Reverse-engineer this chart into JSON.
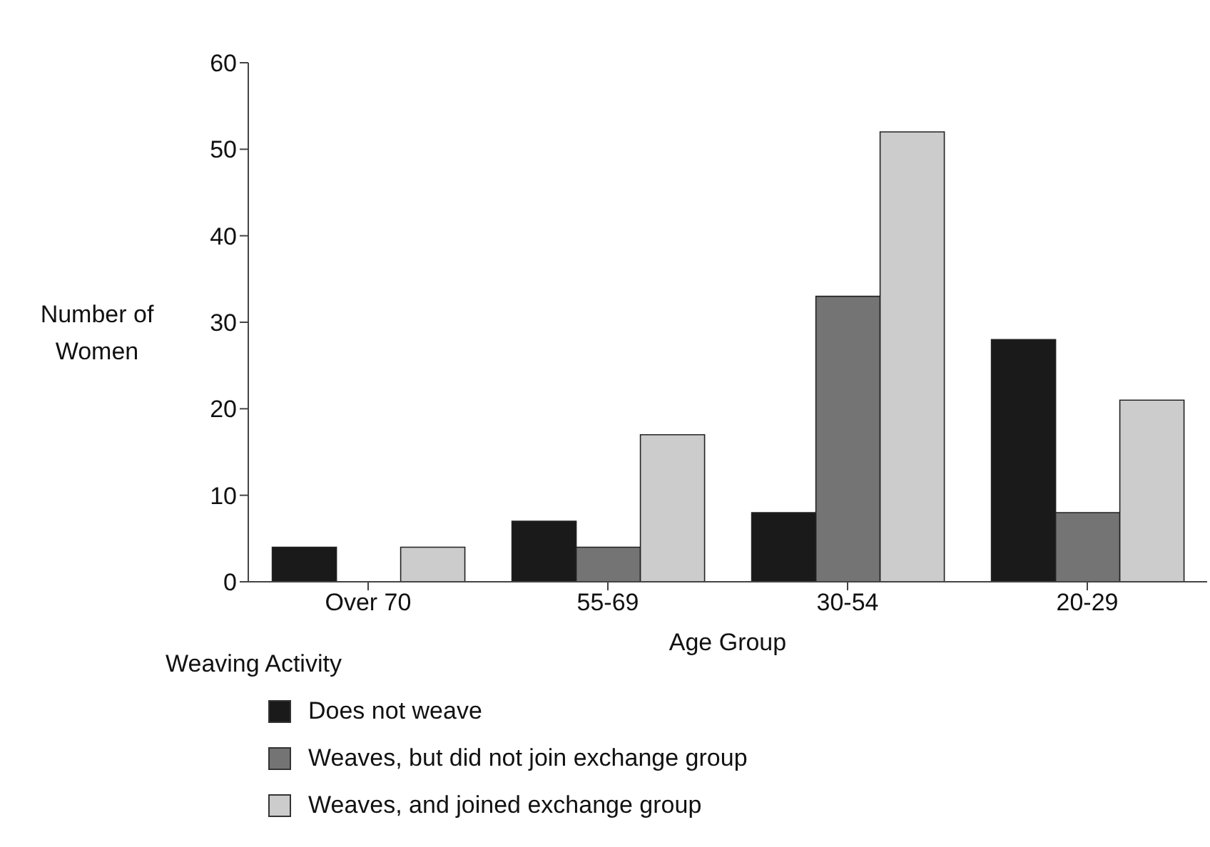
{
  "chart_data": {
    "type": "bar",
    "xlabel": "Age Group",
    "ylabel": "Number of Women",
    "legend_title": "Weaving Activity",
    "categories": [
      "Over 70",
      "55-69",
      "30-54",
      "20-29"
    ],
    "series": [
      {
        "name": "Does not weave",
        "color": "#1a1a1a",
        "values": [
          4,
          7,
          8,
          28
        ]
      },
      {
        "name": "Weaves, but did not join exchange group",
        "color": "#747474",
        "values": [
          0,
          4,
          33,
          8
        ]
      },
      {
        "name": "Weaves, and joined exchange group",
        "color": "#cccccc",
        "values": [
          4,
          17,
          52,
          21
        ]
      }
    ],
    "ylim": [
      0,
      60
    ],
    "yticks": [
      0,
      10,
      20,
      30,
      40,
      50,
      60
    ],
    "grid": false,
    "legend": "bottom left"
  }
}
